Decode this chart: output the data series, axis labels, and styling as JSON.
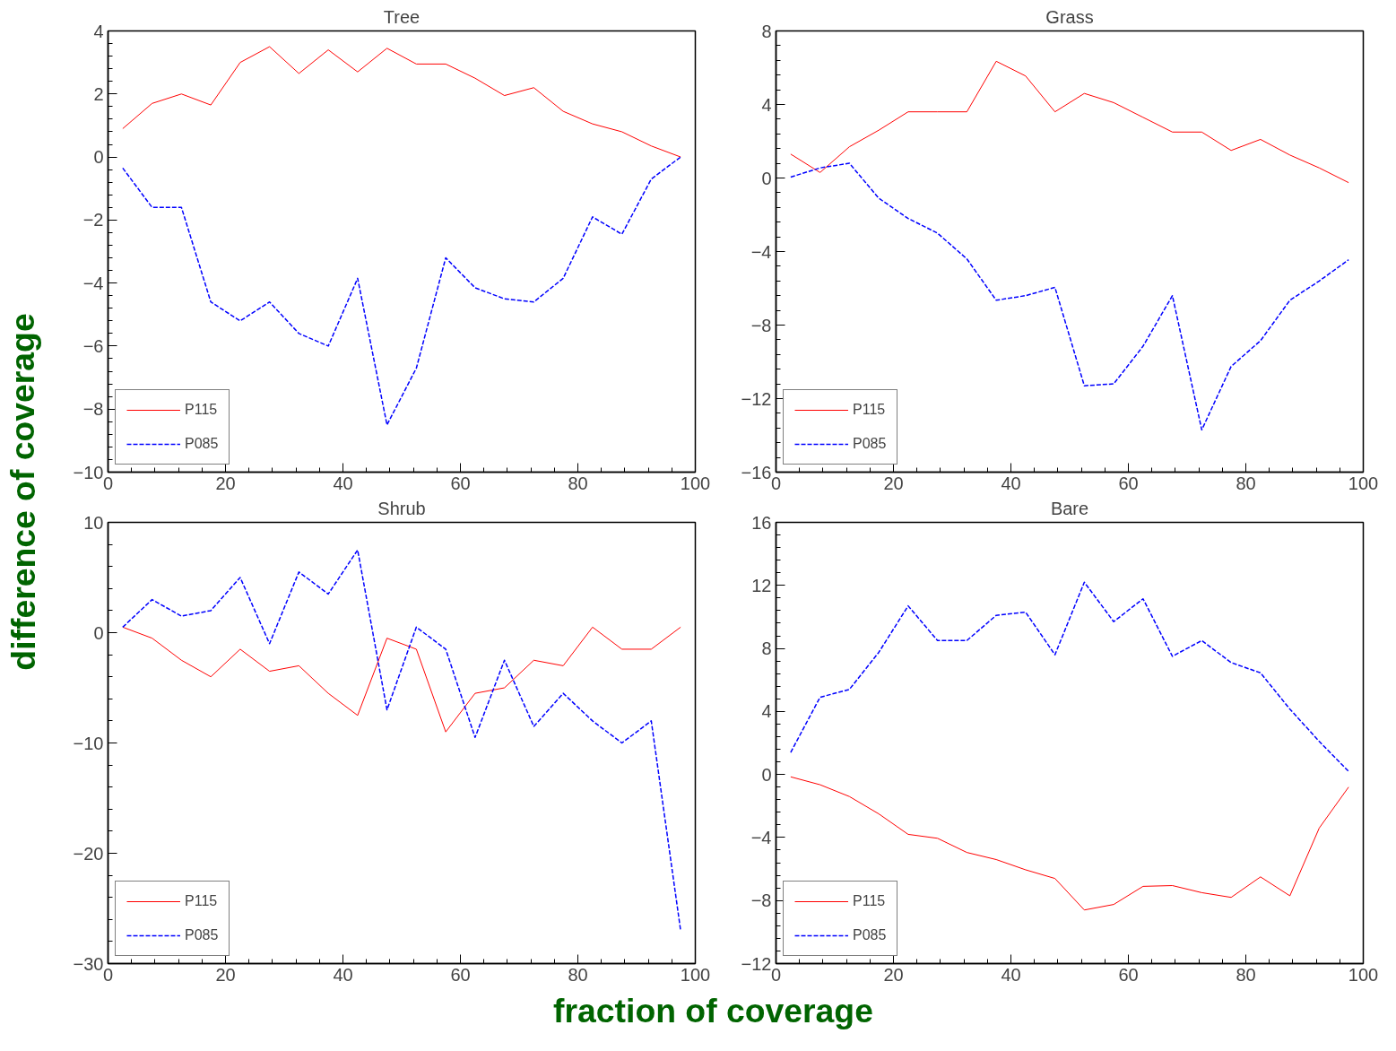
{
  "chart_data": [
    {
      "type": "line",
      "title": "Tree",
      "ylabel": "difference of coverage",
      "x": [
        2.5,
        7.5,
        12.5,
        17.5,
        22.5,
        27.5,
        32.5,
        37.5,
        42.5,
        47.5,
        52.5,
        57.5,
        62.5,
        67.5,
        72.5,
        77.5,
        82.5,
        87.5,
        92.5,
        97.5
      ],
      "series": [
        {
          "name": "P115",
          "color": "#ff0000",
          "line_style": "solid",
          "values": [
            0.9,
            1.7,
            2.0,
            1.65,
            3.0,
            3.5,
            2.65,
            3.4,
            2.7,
            3.45,
            2.95,
            2.95,
            2.5,
            1.95,
            2.2,
            1.45,
            1.05,
            0.8,
            0.35,
            0.0
          ]
        },
        {
          "name": "P085",
          "color": "#0000ff",
          "line_style": "dashed",
          "values": [
            -0.35,
            -1.6,
            -1.6,
            -4.6,
            -5.2,
            -4.6,
            -5.6,
            -6.0,
            -3.85,
            -8.5,
            -6.7,
            -3.2,
            -4.15,
            -4.5,
            -4.6,
            -3.85,
            -1.9,
            -2.45,
            -0.7,
            0.0
          ]
        }
      ],
      "xlim": [
        0,
        100
      ],
      "xticks": [
        0,
        20,
        40,
        60,
        80,
        100
      ],
      "ylim": [
        -10,
        4
      ],
      "yticks": [
        -10,
        -8,
        -6,
        -4,
        -2,
        0,
        2,
        4
      ],
      "grid": false,
      "legend": "bottom left"
    },
    {
      "type": "line",
      "title": "Grass",
      "x": [
        2.5,
        7.5,
        12.5,
        17.5,
        22.5,
        27.5,
        32.5,
        37.5,
        42.5,
        47.5,
        52.5,
        57.5,
        62.5,
        67.5,
        72.5,
        77.5,
        82.5,
        87.5,
        92.5,
        97.5
      ],
      "series": [
        {
          "name": "P115",
          "color": "#ff0000",
          "line_style": "solid",
          "values": [
            1.3,
            0.3,
            1.7,
            2.6,
            3.6,
            3.6,
            3.6,
            6.35,
            5.55,
            3.6,
            4.6,
            4.1,
            3.3,
            2.5,
            2.5,
            1.5,
            2.1,
            1.25,
            0.55,
            -0.25
          ]
        },
        {
          "name": "P085",
          "color": "#0000ff",
          "line_style": "dashed",
          "values": [
            0.05,
            0.55,
            0.8,
            -1.1,
            -2.2,
            -3.0,
            -4.4,
            -6.65,
            -6.4,
            -5.95,
            -11.3,
            -11.2,
            -9.15,
            -6.4,
            -13.7,
            -10.25,
            -8.85,
            -6.65,
            -5.6,
            -4.45
          ]
        }
      ],
      "xlim": [
        0,
        100
      ],
      "xticks": [
        0,
        20,
        40,
        60,
        80,
        100
      ],
      "ylim": [
        -16,
        8
      ],
      "yticks": [
        -16,
        -12,
        -8,
        -4,
        0,
        4,
        8
      ],
      "grid": false,
      "legend": "bottom left"
    },
    {
      "type": "line",
      "title": "Shrub",
      "x": [
        2.5,
        7.5,
        12.5,
        17.5,
        22.5,
        27.5,
        32.5,
        37.5,
        42.5,
        47.5,
        52.5,
        57.5,
        62.5,
        67.5,
        72.5,
        77.5,
        82.5,
        87.5,
        92.5,
        97.5
      ],
      "series": [
        {
          "name": "P115",
          "color": "#ff0000",
          "line_style": "solid",
          "values": [
            0.5,
            -0.5,
            -2.5,
            -4,
            -1.5,
            -3.5,
            -3,
            -5.5,
            -7.5,
            -0.5,
            -1.5,
            -9,
            -5.5,
            -5,
            -2.5,
            -3,
            0.5,
            -1.5,
            -1.5,
            0.5
          ]
        },
        {
          "name": "P085",
          "color": "#0000ff",
          "line_style": "dashed",
          "values": [
            0.5,
            3,
            1.5,
            2,
            5,
            -1,
            5.5,
            3.5,
            7.5,
            -7,
            0.5,
            -1.5,
            -9.5,
            -2.5,
            -8.5,
            -5.5,
            -8,
            -10,
            -8,
            -27
          ]
        }
      ],
      "xlim": [
        0,
        100
      ],
      "xticks": [
        0,
        20,
        40,
        60,
        80,
        100
      ],
      "ylim": [
        -30,
        10
      ],
      "yticks": [
        -30,
        -20,
        -10,
        0,
        10
      ],
      "grid": false,
      "legend": "bottom left"
    },
    {
      "type": "line",
      "title": "Bare",
      "xlabel": "fraction of coverage",
      "x": [
        2.5,
        7.5,
        12.5,
        17.5,
        22.5,
        27.5,
        32.5,
        37.5,
        42.5,
        47.5,
        52.5,
        57.5,
        62.5,
        67.5,
        72.5,
        77.5,
        82.5,
        87.5,
        92.5,
        97.5
      ],
      "series": [
        {
          "name": "P115",
          "color": "#ff0000",
          "line_style": "solid",
          "values": [
            -0.15,
            -0.65,
            -1.4,
            -2.5,
            -3.8,
            -4.05,
            -4.95,
            -5.4,
            -6.05,
            -6.6,
            -8.6,
            -8.25,
            -7.1,
            -7.05,
            -7.5,
            -7.8,
            -6.5,
            -7.7,
            -3.4,
            -0.8
          ]
        },
        {
          "name": "P085",
          "color": "#0000ff",
          "line_style": "dashed",
          "values": [
            1.4,
            4.9,
            5.4,
            7.75,
            10.7,
            8.5,
            8.5,
            10.1,
            10.3,
            7.6,
            12.2,
            9.7,
            11.15,
            7.5,
            8.5,
            7.1,
            6.45,
            4.15,
            2.1,
            0.2
          ]
        }
      ],
      "xlim": [
        0,
        100
      ],
      "xticks": [
        0,
        20,
        40,
        60,
        80,
        100
      ],
      "ylim": [
        -12,
        16
      ],
      "yticks": [
        -12,
        -8,
        -4,
        0,
        4,
        8,
        12,
        16
      ],
      "grid": false,
      "legend": "bottom left"
    }
  ]
}
